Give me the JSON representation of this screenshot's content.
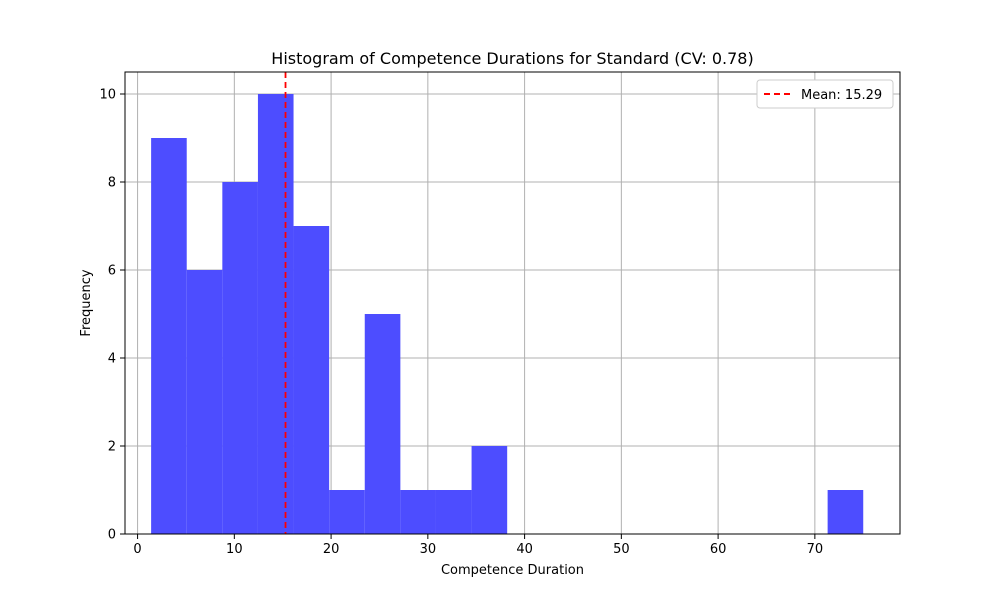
{
  "chart_data": {
    "type": "histogram",
    "title": "Histogram of Competence Durations for Standard (CV: 0.78)",
    "xlabel": "Competence Duration",
    "ylabel": "Frequency",
    "xlim": [
      -1.3,
      78.8
    ],
    "ylim": [
      0,
      10.5
    ],
    "xticks": [
      0,
      10,
      20,
      30,
      40,
      50,
      60,
      70
    ],
    "yticks": [
      0,
      2,
      4,
      6,
      8,
      10
    ],
    "grid": true,
    "bar_color": "#4d4dff",
    "bins": [
      {
        "x0": 1.4,
        "x1": 5.08,
        "count": 9
      },
      {
        "x0": 5.08,
        "x1": 8.76,
        "count": 6
      },
      {
        "x0": 8.76,
        "x1": 12.44,
        "count": 8
      },
      {
        "x0": 12.44,
        "x1": 16.12,
        "count": 10
      },
      {
        "x0": 16.12,
        "x1": 19.8,
        "count": 7
      },
      {
        "x0": 19.8,
        "x1": 23.48,
        "count": 1
      },
      {
        "x0": 23.48,
        "x1": 27.16,
        "count": 5
      },
      {
        "x0": 27.16,
        "x1": 30.84,
        "count": 1
      },
      {
        "x0": 30.84,
        "x1": 34.52,
        "count": 1
      },
      {
        "x0": 34.52,
        "x1": 38.2,
        "count": 2
      },
      {
        "x0": 38.2,
        "x1": 41.88,
        "count": 0
      },
      {
        "x0": 41.88,
        "x1": 45.56,
        "count": 0
      },
      {
        "x0": 45.56,
        "x1": 49.24,
        "count": 0
      },
      {
        "x0": 49.24,
        "x1": 52.92,
        "count": 0
      },
      {
        "x0": 52.92,
        "x1": 56.6,
        "count": 0
      },
      {
        "x0": 56.6,
        "x1": 60.28,
        "count": 0
      },
      {
        "x0": 60.28,
        "x1": 63.96,
        "count": 0
      },
      {
        "x0": 63.96,
        "x1": 67.64,
        "count": 0
      },
      {
        "x0": 67.64,
        "x1": 71.32,
        "count": 0
      },
      {
        "x0": 71.32,
        "x1": 75.0,
        "count": 1
      }
    ],
    "mean_line": {
      "value": 15.29,
      "label": "Mean: 15.29",
      "color": "#ff0000",
      "style": "dashed"
    },
    "legend": {
      "placement": "top-right",
      "entries": [
        "Mean: 15.29"
      ]
    }
  }
}
